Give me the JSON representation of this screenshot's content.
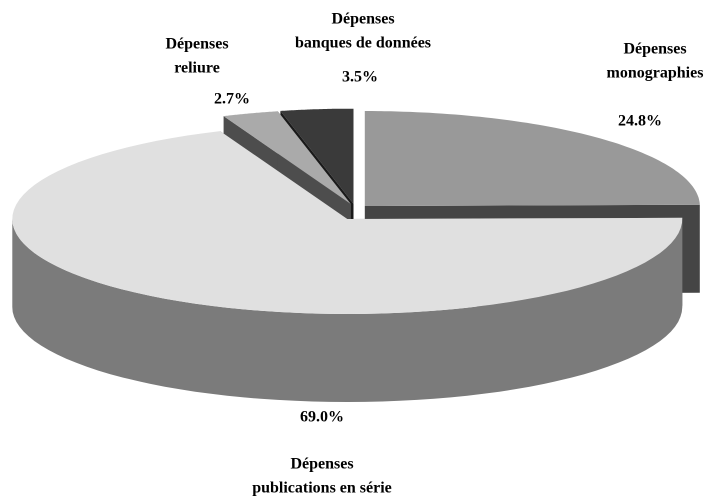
{
  "chart_data": {
    "type": "pie",
    "categories": [
      [
        "Dépenses",
        "monographies"
      ],
      [
        "Dépenses",
        "publications en série"
      ],
      [
        "Dépenses",
        "reliure"
      ],
      [
        "Dépenses",
        "banques de données"
      ]
    ],
    "values": [
      24.8,
      69.0,
      2.7,
      3.5
    ],
    "value_labels": [
      "24.8%",
      "69.0%",
      "2.7%",
      "3.5%"
    ],
    "colors": [
      "#999999",
      "#e0e0e0",
      "#aaaaaa",
      "#3a3a3a"
    ]
  }
}
